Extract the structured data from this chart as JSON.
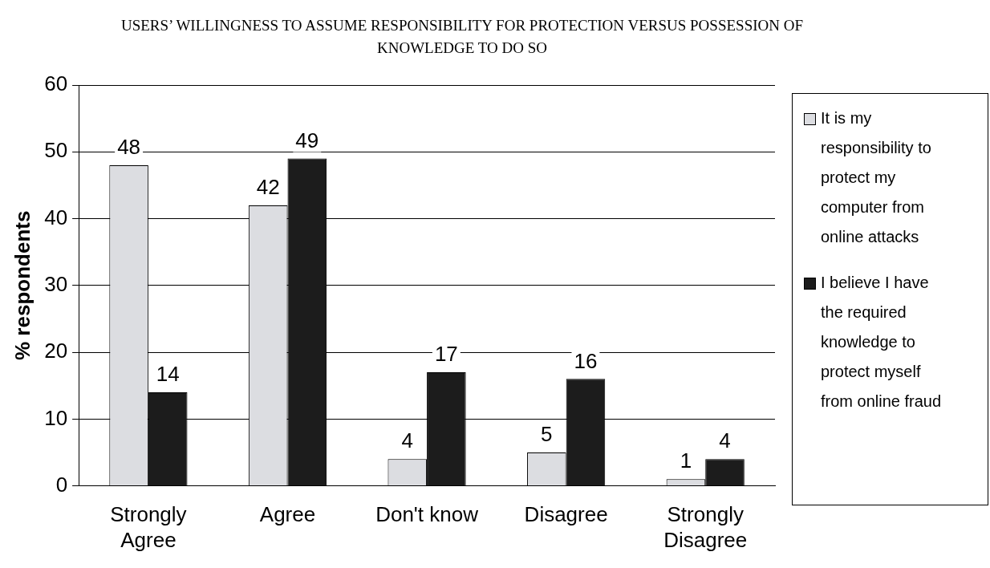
{
  "chart_data": {
    "type": "bar",
    "title": "USERS’ WILLINGNESS TO ASSUME RESPONSIBILITY FOR PROTECTION VERSUS POSSESSION OF KNOWLEDGE TO DO SO",
    "ylabel": "% respondents",
    "categories": [
      "Strongly Agree",
      "Agree",
      "Don't know",
      "Disagree",
      "Strongly Disagree"
    ],
    "series": [
      {
        "name": "It is my responsibility to protect my computer from online attacks",
        "color": "#dcdde1",
        "values": [
          48,
          42,
          4,
          5,
          1
        ]
      },
      {
        "name": "I believe I have the required knowledge to protect myself from online fraud",
        "color": "#1c1c1c",
        "values": [
          14,
          49,
          17,
          16,
          4
        ]
      }
    ],
    "ylim": [
      0,
      60
    ],
    "yticks": [
      0,
      10,
      20,
      30,
      40,
      50,
      60
    ],
    "grid": "y",
    "legend": "right",
    "data_labels": true
  }
}
